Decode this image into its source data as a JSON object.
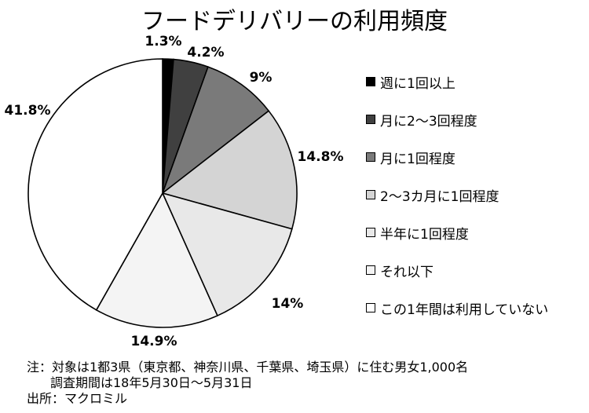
{
  "chart_data": {
    "type": "pie",
    "title": "フードデリバリーの利用頻度",
    "unit": "%",
    "slices": [
      {
        "label": "週に1回以上",
        "value": 1.3,
        "value_label": "1.3%",
        "color": "#000000"
      },
      {
        "label": "月に2～3回程度",
        "value": 4.2,
        "value_label": "4.2%",
        "color": "#404040"
      },
      {
        "label": "月に1回程度",
        "value": 9,
        "value_label": "9%",
        "color": "#7a7a7a"
      },
      {
        "label": "2～3カ月に1回程度",
        "value": 14.8,
        "value_label": "14.8%",
        "color": "#d4d4d4"
      },
      {
        "label": "半年に1回程度",
        "value": 14,
        "value_label": "14%",
        "color": "#e8e8e8"
      },
      {
        "label": "それ以下",
        "value": 14.9,
        "value_label": "14.9%",
        "color": "#f4f4f4"
      },
      {
        "label": "この1年間は利用していない",
        "value": 41.8,
        "value_label": "41.8%",
        "color": "#ffffff"
      }
    ],
    "start_angle": "12 o'clock",
    "direction": "clockwise",
    "legend_position": "right"
  },
  "notes": {
    "line1": "注：対象は1都3県（東京都、神奈川県、千葉県、埼玉県）に住む男女1,000名",
    "line2": "調査期間は18年5月30日～5月31日",
    "line3": "出所：マクロミル"
  }
}
